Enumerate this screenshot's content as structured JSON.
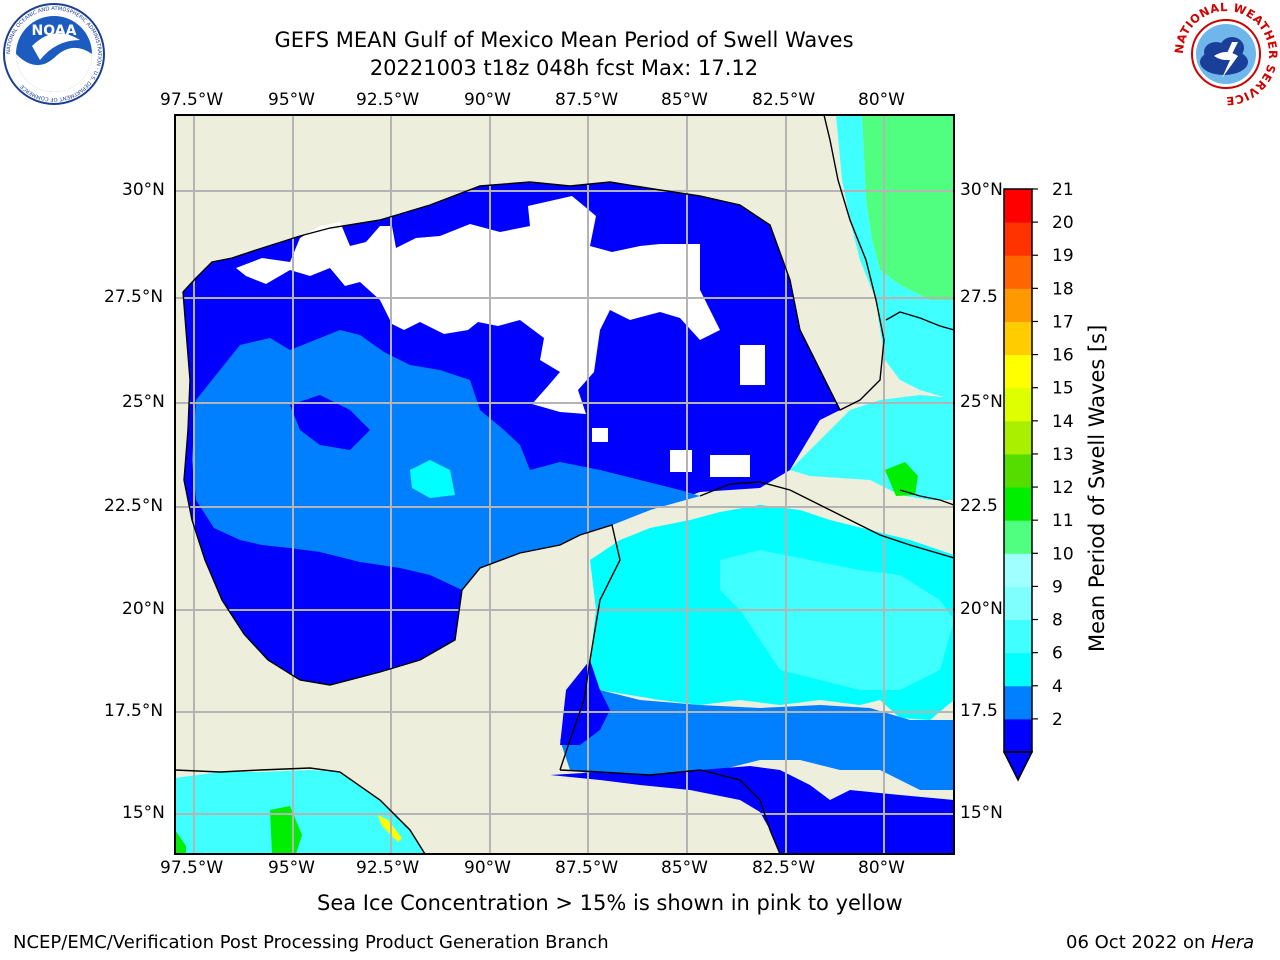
{
  "title": {
    "line1": "GEFS MEAN Gulf of Mexico Mean Period of Swell Waves",
    "line2": "20221003 t18z 048h fcst   Max: 17.12"
  },
  "logos": {
    "left": "noaa-logo",
    "right": "nws-logo",
    "left_text": "NOAA",
    "left_ring_text": "NATIONAL OCEANIC AND ATMOSPHERIC ADMINISTRATION · U.S. DEPARTMENT OF COMMERCE",
    "right_ring_text": "NATIONAL WEATHER SERVICE"
  },
  "map": {
    "lon_labels": [
      "97.5°W",
      "95°W",
      "92.5°W",
      "90°W",
      "87.5°W",
      "85°W",
      "82.5°W",
      "80°W"
    ],
    "lat_labels": [
      "30°N",
      "27.5°N",
      "25°N",
      "22.5°N",
      "20°N",
      "17.5°N",
      "15°N"
    ],
    "lat_labels_right": [
      "30°N",
      "27.5",
      "25°N",
      "22.5",
      "20°N",
      "17.5",
      "15°N"
    ],
    "land_color": "#eeeedd",
    "grid_color": "#b4b4b4"
  },
  "colorbar": {
    "label": "Mean Period of Swell Waves [s]",
    "ticks": [
      "21",
      "20",
      "19",
      "18",
      "17",
      "16",
      "15",
      "14",
      "13",
      "12",
      "11",
      "10",
      "9",
      "8",
      "6",
      "4",
      "2"
    ],
    "colors_low_to_high": [
      "#0000ff",
      "#0080ff",
      "#00ffff",
      "#40ffff",
      "#80ffff",
      "#a0ffff",
      "#50ff80",
      "#00ee00",
      "#55dd00",
      "#aaee00",
      "#ddff00",
      "#ffff00",
      "#ffcc00",
      "#ff9900",
      "#ff6600",
      "#ff3300",
      "#ff0000"
    ]
  },
  "notes": {
    "sea_ice": "Sea Ice Concentration > 15% is shown in pink to yellow"
  },
  "footer": {
    "left": "NCEP/EMC/Verification Post Processing Product Generation Branch",
    "right_prefix": "06 Oct 2022 on ",
    "right_host": "Hera"
  }
}
